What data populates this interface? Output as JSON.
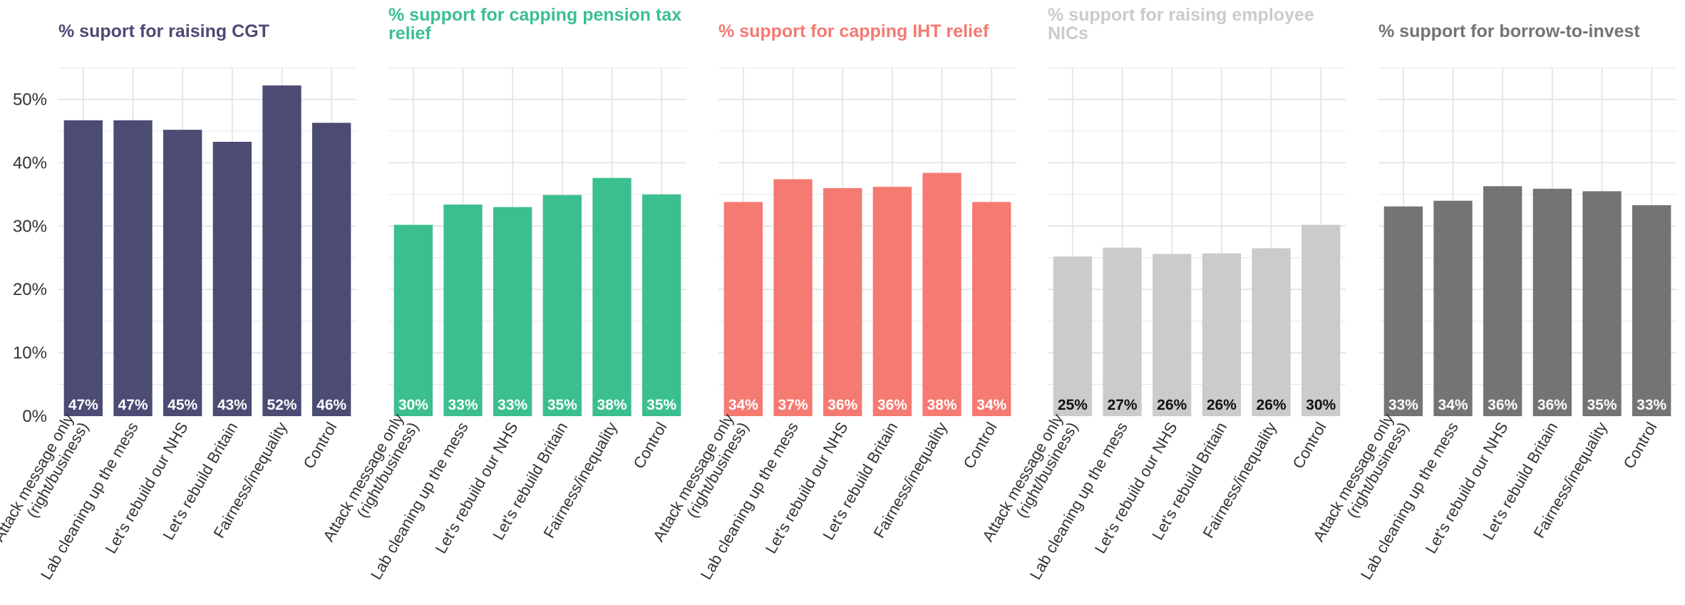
{
  "chart_data": [
    {
      "type": "bar",
      "title_lines": [
        "% suport for raising CGT"
      ],
      "color": "#4b4b74",
      "label_color": "#ffffff",
      "categories": [
        [
          "Attack message only",
          "(right/business)"
        ],
        [
          "Lab cleaning up the mess"
        ],
        [
          "Let's rebuild our NHS"
        ],
        [
          "Let's rebuild Britain"
        ],
        [
          "Fairness/inequality"
        ],
        [
          "Control"
        ]
      ],
      "values": [
        46.7,
        46.7,
        45.2,
        43.3,
        52.2,
        46.3
      ],
      "value_labels": [
        "47%",
        "47%",
        "45%",
        "43%",
        "52%",
        "46%"
      ],
      "ylim": [
        0,
        55
      ],
      "yticks": [
        "0%",
        "10%",
        "20%",
        "30%",
        "40%",
        "50%"
      ],
      "show_y_axis": true
    },
    {
      "type": "bar",
      "title_lines": [
        "% support for capping pension tax",
        "relief"
      ],
      "color": "#3cbf8e",
      "label_color": "#ffffff",
      "categories": [
        [
          "Attack message only",
          "(right/business)"
        ],
        [
          "Lab cleaning up the mess"
        ],
        [
          "Let's rebuild our NHS"
        ],
        [
          "Let's rebuild Britain"
        ],
        [
          "Fairness/inequality"
        ],
        [
          "Control"
        ]
      ],
      "values": [
        30.2,
        33.4,
        33.0,
        34.9,
        37.6,
        35.0
      ],
      "value_labels": [
        "30%",
        "33%",
        "33%",
        "35%",
        "38%",
        "35%"
      ],
      "ylim": [
        0,
        55
      ],
      "show_y_axis": false
    },
    {
      "type": "bar",
      "title_lines": [
        "% support for capping IHT relief"
      ],
      "color": "#f47a72",
      "label_color": "#ffffff",
      "categories": [
        [
          "Attack message only",
          "(right/business)"
        ],
        [
          "Lab cleaning up the mess"
        ],
        [
          "Let's rebuild our NHS"
        ],
        [
          "Let's rebuild Britain"
        ],
        [
          "Fairness/inequality"
        ],
        [
          "Control"
        ]
      ],
      "values": [
        33.8,
        37.4,
        36.0,
        36.2,
        38.4,
        33.8
      ],
      "value_labels": [
        "34%",
        "37%",
        "36%",
        "36%",
        "38%",
        "34%"
      ],
      "ylim": [
        0,
        55
      ],
      "show_y_axis": false
    },
    {
      "type": "bar",
      "title_lines": [
        "% support for raising employee",
        "NICs"
      ],
      "color": "#cccbca",
      "label_color": "#111111",
      "categories": [
        [
          "Attack message only",
          "(right/business)"
        ],
        [
          "Lab cleaning up the mess"
        ],
        [
          "Let's rebuild our NHS"
        ],
        [
          "Let's rebuild Britain"
        ],
        [
          "Fairness/inequality"
        ],
        [
          "Control"
        ]
      ],
      "values": [
        25.2,
        26.6,
        25.6,
        25.7,
        26.5,
        30.2
      ],
      "value_labels": [
        "25%",
        "27%",
        "26%",
        "26%",
        "26%",
        "30%"
      ],
      "ylim": [
        0,
        55
      ],
      "show_y_axis": false
    },
    {
      "type": "bar",
      "title_lines": [
        "% support for borrow-to-invest"
      ],
      "color": "#737473",
      "label_color": "#ffffff",
      "categories": [
        [
          "Attack message only",
          "(right/business)"
        ],
        [
          "Lab cleaning up the mess"
        ],
        [
          "Let's rebuild our NHS"
        ],
        [
          "Let's rebuild Britain"
        ],
        [
          "Fairness/inequality"
        ],
        [
          "Control"
        ]
      ],
      "values": [
        33.1,
        34.0,
        36.3,
        35.9,
        35.5,
        33.3
      ],
      "value_labels": [
        "33%",
        "34%",
        "36%",
        "36%",
        "35%",
        "33%"
      ],
      "ylim": [
        0,
        55
      ],
      "show_y_axis": false
    }
  ]
}
